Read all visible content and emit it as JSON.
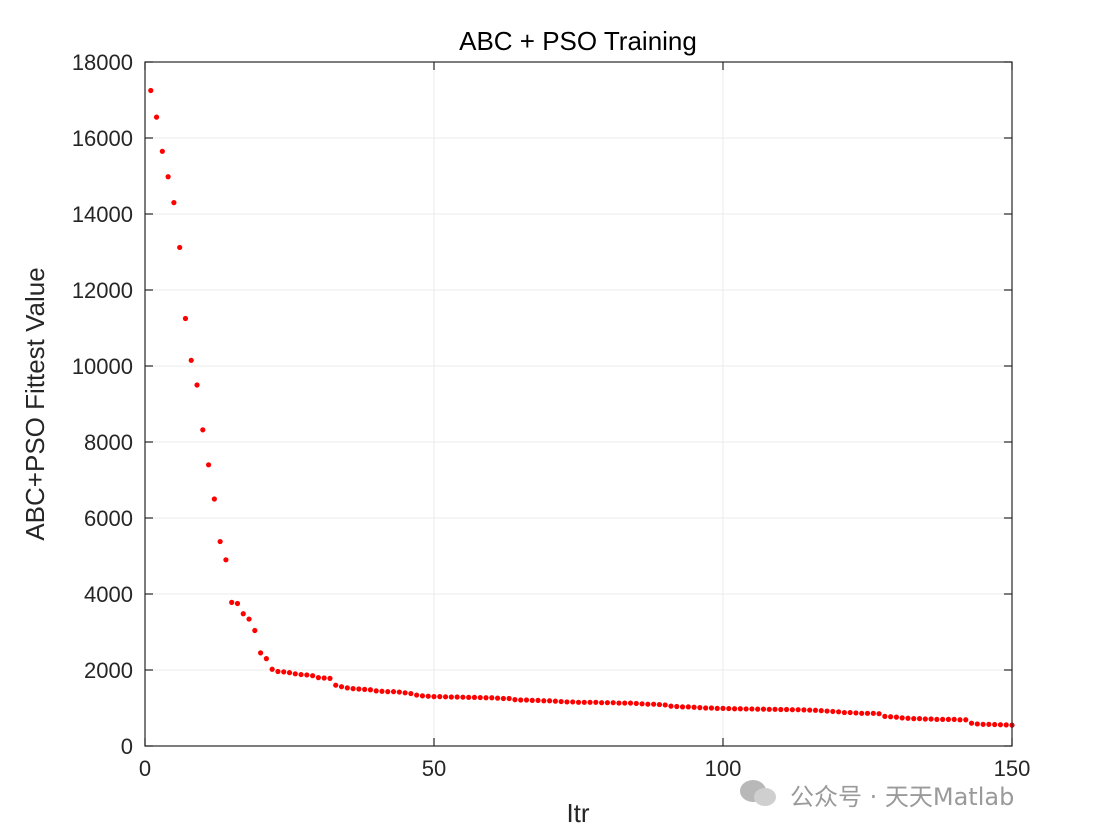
{
  "chart_data": {
    "type": "scatter",
    "title": "ABC + PSO Training",
    "xlabel": "Itr",
    "ylabel": "ABC+PSO Fittest Value",
    "xlim": [
      0,
      150
    ],
    "ylim": [
      0,
      18000
    ],
    "xticks": [
      0,
      50,
      100,
      150
    ],
    "yticks": [
      0,
      2000,
      4000,
      6000,
      8000,
      10000,
      12000,
      14000,
      16000,
      18000
    ],
    "grid": true,
    "marker_color": "#ff0000",
    "series": [
      {
        "x": [
          1,
          2,
          3,
          4,
          5,
          6,
          7,
          8,
          9,
          10,
          11,
          12,
          13,
          14,
          15,
          16,
          17,
          18,
          19,
          20,
          21,
          22,
          23,
          24,
          25,
          26,
          27,
          28,
          29,
          30,
          31,
          32,
          33,
          34,
          35,
          36,
          37,
          38,
          39,
          40,
          41,
          42,
          43,
          44,
          45,
          46,
          47,
          48,
          49,
          50,
          51,
          52,
          53,
          54,
          55,
          56,
          57,
          58,
          59,
          60,
          61,
          62,
          63,
          64,
          65,
          66,
          67,
          68,
          69,
          70,
          71,
          72,
          73,
          74,
          75,
          76,
          77,
          78,
          79,
          80,
          81,
          82,
          83,
          84,
          85,
          86,
          87,
          88,
          89,
          90,
          91,
          92,
          93,
          94,
          95,
          96,
          97,
          98,
          99,
          100,
          101,
          102,
          103,
          104,
          105,
          106,
          107,
          108,
          109,
          110,
          111,
          112,
          113,
          114,
          115,
          116,
          117,
          118,
          119,
          120,
          121,
          122,
          123,
          124,
          125,
          126,
          127,
          128,
          129,
          130,
          131,
          132,
          133,
          134,
          135,
          136,
          137,
          138,
          139,
          140,
          141,
          142,
          143,
          144,
          145,
          146,
          147,
          148,
          149,
          150
        ],
        "y": [
          17250,
          16550,
          15650,
          14980,
          14300,
          13120,
          11250,
          10150,
          9500,
          8320,
          7400,
          6500,
          5380,
          4900,
          3780,
          3750,
          3480,
          3340,
          3040,
          2450,
          2300,
          2020,
          1960,
          1950,
          1930,
          1900,
          1880,
          1870,
          1850,
          1800,
          1790,
          1780,
          1600,
          1560,
          1530,
          1510,
          1500,
          1490,
          1480,
          1450,
          1440,
          1430,
          1430,
          1420,
          1400,
          1380,
          1340,
          1320,
          1310,
          1300,
          1300,
          1295,
          1290,
          1290,
          1285,
          1280,
          1280,
          1275,
          1270,
          1270,
          1260,
          1250,
          1250,
          1220,
          1210,
          1210,
          1200,
          1200,
          1190,
          1190,
          1180,
          1170,
          1160,
          1160,
          1150,
          1150,
          1150,
          1150,
          1140,
          1140,
          1140,
          1130,
          1130,
          1130,
          1120,
          1110,
          1100,
          1100,
          1090,
          1080,
          1050,
          1040,
          1030,
          1030,
          1020,
          1010,
          1000,
          1000,
          990,
          990,
          985,
          980,
          980,
          975,
          975,
          970,
          970,
          965,
          965,
          960,
          960,
          955,
          955,
          950,
          945,
          940,
          930,
          920,
          910,
          900,
          880,
          880,
          870,
          860,
          860,
          860,
          850,
          780,
          770,
          760,
          740,
          730,
          720,
          720,
          710,
          710,
          700,
          700,
          700,
          700,
          690,
          690,
          600,
          580,
          570,
          570,
          565,
          560,
          555,
          550
        ]
      }
    ]
  },
  "watermark": {
    "text": "公众号 · 天天Matlab"
  }
}
